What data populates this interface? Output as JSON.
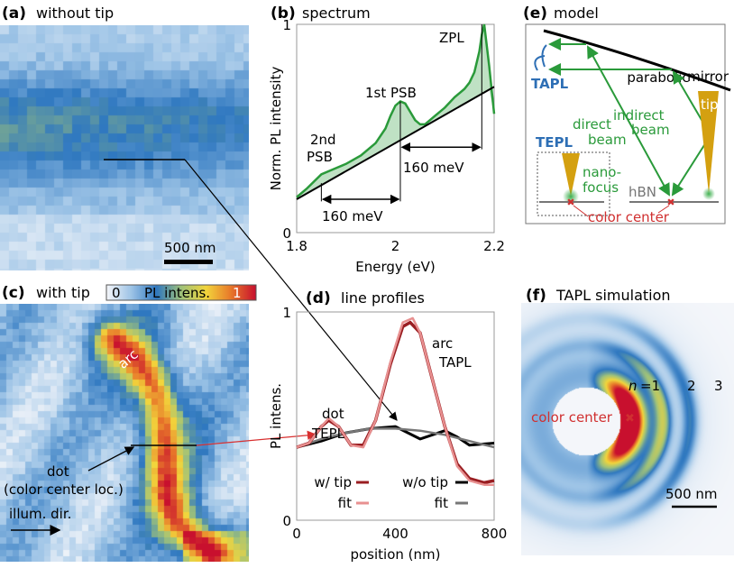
{
  "panels": {
    "a": {
      "label": "(a)",
      "title": "without tip",
      "scalebar": "500 nm"
    },
    "b": {
      "label": "(b)",
      "title": "spectrum"
    },
    "c": {
      "label": "(c)",
      "title": "with tip",
      "annotations": {
        "arc": "arc",
        "dot1": "dot",
        "dot2": "(color center loc.)",
        "illum": "illum. dir."
      },
      "colorbar": {
        "min": "0",
        "label": "PL intens.",
        "max": "1"
      }
    },
    "d": {
      "label": "(d)",
      "title": "line profiles"
    },
    "e": {
      "label": "(e)",
      "title": "model",
      "texts": {
        "mirror1": "parabolic",
        "mirror2": "mirror",
        "tapl": "TAPL",
        "tepl": "TEPL",
        "indirect1": "indirect",
        "indirect2": "beam",
        "direct1": "direct",
        "direct2": "beam",
        "tip": "tip",
        "nano1": "nano-",
        "nano2": "focus",
        "hbn": "hBN",
        "cc": "color center"
      },
      "colors": {
        "beam": "#2a9a3a",
        "tip": "#d4a010",
        "label": "#2e6fb5",
        "center": "#d03030"
      }
    },
    "f": {
      "label": "(f)",
      "title": "TAPL simulation",
      "n_label": "n",
      "orders": [
        "=1",
        "2",
        "3"
      ],
      "cc": "color center",
      "scalebar": "500 nm"
    }
  },
  "colormap": [
    "#f4f6fa",
    "#9cc3e6",
    "#2f78c0",
    "#9fc27a",
    "#f2d53c",
    "#e8782a",
    "#c8102e"
  ],
  "chart_data": [
    {
      "type": "area",
      "panel": "b",
      "title": "spectrum",
      "xlabel": "Energy (eV)",
      "ylabel": "Norm. PL intensity",
      "xlim": [
        1.8,
        2.2
      ],
      "ylim": [
        0,
        1
      ],
      "xticks": [
        "1.8",
        "2",
        "2.2"
      ],
      "yticks": [
        "0",
        "1"
      ],
      "series": [
        {
          "color": "#2a9a3a",
          "x": [
            1.8,
            1.82,
            1.85,
            1.88,
            1.9,
            1.93,
            1.96,
            1.98,
            1.99,
            2.0,
            2.01,
            2.02,
            2.03,
            2.04,
            2.05,
            2.06,
            2.08,
            2.1,
            2.12,
            2.14,
            2.15,
            2.16,
            2.17,
            2.175,
            2.18,
            2.19,
            2.2
          ],
          "y": [
            0.17,
            0.21,
            0.28,
            0.31,
            0.33,
            0.37,
            0.43,
            0.5,
            0.56,
            0.61,
            0.63,
            0.62,
            0.58,
            0.54,
            0.52,
            0.52,
            0.56,
            0.6,
            0.65,
            0.69,
            0.72,
            0.77,
            0.87,
            0.95,
            1.0,
            0.8,
            0.57
          ]
        },
        {
          "color": "#000000",
          "x": [
            1.8,
            2.2
          ],
          "y": [
            0.16,
            0.7
          ]
        }
      ],
      "annotations": {
        "zpl": "ZPL",
        "psb1": "1st PSB",
        "psb2a": "2nd",
        "psb2b": "PSB",
        "shift1": "160 meV",
        "shift2": "160 meV"
      },
      "markers_eV": {
        "psb2": 1.85,
        "psb1": 2.01,
        "zpl": 2.175
      }
    },
    {
      "type": "line",
      "panel": "d",
      "title": "line profiles",
      "xlabel": "position (nm)",
      "ylabel": "PL intens.",
      "xlim": [
        0,
        800
      ],
      "ylim": [
        0,
        1
      ],
      "xticks": [
        "0",
        "400",
        "800"
      ],
      "yticks": [
        "0",
        "1"
      ],
      "series": [
        {
          "name": "w/ tip",
          "color": "#9a1e22",
          "x": [
            0,
            50,
            100,
            130,
            170,
            220,
            270,
            320,
            380,
            430,
            460,
            500,
            540,
            600,
            650,
            700,
            760,
            800
          ],
          "y": [
            0.35,
            0.37,
            0.45,
            0.48,
            0.45,
            0.36,
            0.36,
            0.48,
            0.75,
            0.93,
            0.95,
            0.9,
            0.72,
            0.45,
            0.27,
            0.2,
            0.18,
            0.19
          ]
        },
        {
          "name": "fit",
          "color": "#e89090",
          "x": [
            0,
            50,
            100,
            130,
            170,
            220,
            270,
            320,
            380,
            430,
            470,
            500,
            540,
            600,
            650,
            700,
            760,
            800
          ],
          "y": [
            0.35,
            0.37,
            0.45,
            0.49,
            0.45,
            0.36,
            0.35,
            0.48,
            0.76,
            0.95,
            0.97,
            0.9,
            0.72,
            0.45,
            0.26,
            0.19,
            0.17,
            0.17
          ]
        },
        {
          "name": "w/o tip",
          "color": "#000000",
          "x": [
            0,
            100,
            200,
            300,
            400,
            450,
            500,
            550,
            600,
            650,
            700,
            800
          ],
          "y": [
            0.35,
            0.38,
            0.42,
            0.44,
            0.45,
            0.42,
            0.39,
            0.41,
            0.43,
            0.4,
            0.36,
            0.37
          ]
        },
        {
          "name": "fit",
          "color": "#777777",
          "x": [
            0,
            100,
            200,
            300,
            400,
            500,
            600,
            700,
            800
          ],
          "y": [
            0.35,
            0.39,
            0.42,
            0.44,
            0.44,
            0.43,
            0.41,
            0.38,
            0.35
          ]
        }
      ],
      "annotations": {
        "dot1": "dot",
        "dot2": "TEPL",
        "arc1": "arc",
        "arc2": "TAPL"
      },
      "legend": "bottom"
    }
  ]
}
